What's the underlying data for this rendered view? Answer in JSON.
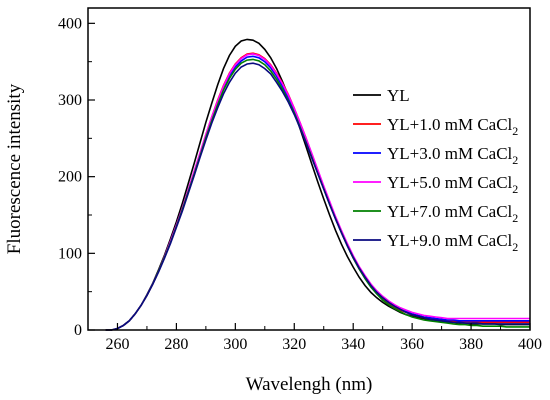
{
  "chart_data": {
    "type": "line",
    "xlabel": "Wavelengh (nm)",
    "ylabel": "Fluorescence intensity",
    "xlim": [
      250,
      400
    ],
    "ylim": [
      0,
      420
    ],
    "xticks": [
      260,
      280,
      300,
      320,
      340,
      360,
      380,
      400
    ],
    "yticks": [
      0,
      100,
      200,
      300,
      400
    ],
    "grid": false,
    "legend_position": "right",
    "x": [
      256,
      258,
      260,
      262,
      264,
      266,
      268,
      270,
      272,
      274,
      276,
      278,
      280,
      282,
      284,
      286,
      288,
      290,
      292,
      294,
      296,
      298,
      300,
      302,
      304,
      306,
      308,
      310,
      312,
      314,
      316,
      318,
      320,
      322,
      324,
      326,
      328,
      330,
      332,
      334,
      336,
      338,
      340,
      342,
      344,
      346,
      348,
      350,
      352,
      354,
      356,
      358,
      360,
      362,
      364,
      366,
      368,
      370,
      372,
      374,
      376,
      378,
      380,
      382,
      384,
      386,
      388,
      390,
      392,
      394,
      396,
      398,
      400
    ],
    "series": [
      {
        "name": "YL",
        "color": "#000000",
        "values": [
          0,
          0,
          2,
          6,
          12,
          21,
          32,
          46,
          61,
          79,
          98,
          119,
          141,
          165,
          191,
          217,
          244,
          271,
          296,
          320,
          341,
          358,
          370,
          377,
          379,
          378,
          374,
          366,
          355,
          341,
          324,
          305,
          284,
          262,
          239,
          216,
          193,
          171,
          150,
          130,
          112,
          96,
          82,
          69,
          58,
          49,
          42,
          36,
          31,
          27,
          23,
          20,
          18,
          16,
          15,
          13,
          12,
          11,
          10,
          10,
          9,
          9,
          8,
          8,
          8,
          8,
          8,
          7,
          7,
          7,
          7,
          7,
          7
        ]
      },
      {
        "name": "YL+1.0 mM CaCl",
        "sub": "2",
        "color": "#ff0000",
        "values": [
          0,
          0,
          2,
          6,
          12,
          21,
          32,
          45,
          60,
          77,
          95,
          115,
          136,
          158,
          182,
          206,
          230,
          255,
          278,
          300,
          319,
          335,
          347,
          355,
          360,
          361,
          359,
          354,
          346,
          335,
          322,
          307,
          289,
          270,
          250,
          229,
          208,
          187,
          166,
          146,
          127,
          110,
          94,
          80,
          68,
          57,
          48,
          41,
          35,
          30,
          26,
          23,
          20,
          18,
          16,
          15,
          14,
          13,
          12,
          12,
          11,
          11,
          11,
          10,
          10,
          10,
          10,
          10,
          10,
          10,
          10,
          10,
          10
        ]
      },
      {
        "name": "YL+3.0 mM CaCl",
        "sub": "2",
        "color": "#0000ff",
        "values": [
          0,
          0,
          2,
          6,
          12,
          21,
          32,
          45,
          60,
          77,
          95,
          115,
          136,
          158,
          181,
          205,
          229,
          253,
          276,
          297,
          316,
          332,
          343,
          351,
          356,
          357,
          355,
          350,
          342,
          331,
          318,
          303,
          286,
          267,
          247,
          227,
          206,
          185,
          165,
          145,
          127,
          110,
          94,
          80,
          68,
          58,
          49,
          42,
          36,
          31,
          27,
          24,
          21,
          19,
          17,
          16,
          15,
          14,
          13,
          13,
          12,
          12,
          12,
          12,
          12,
          12,
          12,
          12,
          12,
          12,
          12,
          12,
          12
        ]
      },
      {
        "name": "YL+5.0 mM CaCl",
        "sub": "2",
        "color": "#ff00ff",
        "values": [
          0,
          0,
          2,
          6,
          12,
          21,
          32,
          45,
          60,
          77,
          96,
          116,
          137,
          159,
          183,
          207,
          231,
          255,
          278,
          299,
          318,
          334,
          346,
          354,
          359,
          360,
          358,
          353,
          345,
          334,
          321,
          306,
          289,
          270,
          250,
          230,
          209,
          188,
          168,
          148,
          130,
          113,
          97,
          83,
          71,
          60,
          51,
          44,
          38,
          33,
          29,
          26,
          23,
          21,
          19,
          18,
          17,
          16,
          15,
          15,
          15,
          15,
          15,
          15,
          15,
          15,
          15,
          15,
          15,
          15,
          15,
          15,
          15
        ]
      },
      {
        "name": "YL+7.0 mM CaCl",
        "sub": "2",
        "color": "#008000",
        "values": [
          0,
          0,
          2,
          6,
          12,
          21,
          32,
          45,
          60,
          77,
          95,
          114,
          135,
          157,
          180,
          203,
          227,
          251,
          273,
          294,
          313,
          328,
          340,
          348,
          352,
          353,
          351,
          346,
          338,
          327,
          314,
          299,
          283,
          264,
          245,
          225,
          204,
          184,
          164,
          145,
          127,
          110,
          94,
          80,
          67,
          56,
          47,
          39,
          33,
          28,
          24,
          20,
          17,
          15,
          13,
          12,
          11,
          10,
          9,
          8,
          7,
          7,
          6,
          6,
          5,
          5,
          5,
          5,
          4,
          4,
          4,
          4,
          4
        ]
      },
      {
        "name": "YL+9.0 mM CaCl",
        "sub": "2",
        "color": "#0a0a80",
        "values": [
          0,
          0,
          2,
          6,
          12,
          21,
          32,
          45,
          60,
          76,
          94,
          113,
          134,
          155,
          178,
          201,
          225,
          248,
          270,
          290,
          308,
          323,
          335,
          343,
          347,
          348,
          346,
          341,
          334,
          323,
          311,
          297,
          281,
          263,
          244,
          224,
          204,
          184,
          164,
          145,
          127,
          110,
          95,
          81,
          69,
          58,
          49,
          42,
          36,
          31,
          27,
          23,
          20,
          18,
          16,
          14,
          13,
          12,
          11,
          10,
          10,
          9,
          9,
          9,
          8,
          8,
          8,
          8,
          8,
          8,
          8,
          8,
          8
        ]
      }
    ]
  }
}
